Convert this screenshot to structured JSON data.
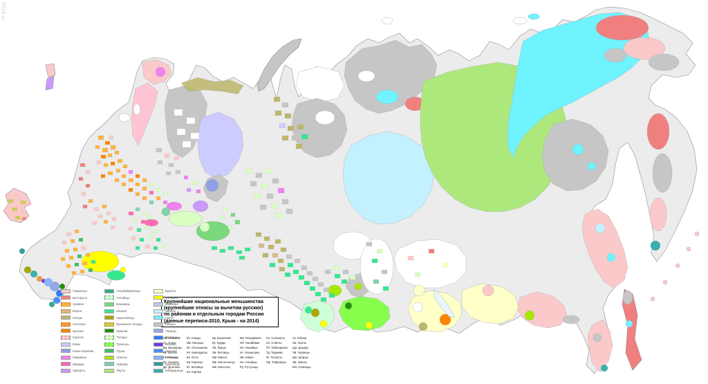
{
  "watermark": "2019 ©",
  "title_box": {
    "lines": [
      "Крупнейшие национальные меньшинства",
      "(крупнейшие этносы за вычетом русских)",
      "по районам и отдельным городам России",
      "(данные переписи-2010, Крым - на 2014)"
    ]
  },
  "legend": {
    "columns": [
      [
        {
          "label": "Украинцы",
          "color": "#FBC9C9",
          "pattern": "solid"
        },
        {
          "label": "Белорусы",
          "color": "#F08080",
          "pattern": "solid"
        },
        {
          "label": "Армяне",
          "color": "#FFB340",
          "pattern": "dotted"
        },
        {
          "label": "Евреи",
          "color": "#D9B98E",
          "pattern": "dotted"
        },
        {
          "label": "Ненцы",
          "color": "#BDB76B",
          "pattern": "solid"
        },
        {
          "label": "Осетины",
          "color": "#F29B38",
          "pattern": "dotted"
        },
        {
          "label": "Цыгане",
          "color": "#FF8400",
          "pattern": "solid"
        },
        {
          "label": "Карелы",
          "color": "#FFC4D4",
          "pattern": "dashed"
        },
        {
          "label": "Коми",
          "color": "#CCCCFF",
          "pattern": "solid"
        },
        {
          "label": "Коми-пермяки",
          "color": "#8E9FE4",
          "pattern": "solid"
        },
        {
          "label": "Марийцы",
          "color": "#EE82EE",
          "pattern": "solid"
        },
        {
          "label": "Мордва",
          "color": "#FF69B4",
          "pattern": "solid"
        },
        {
          "label": "Удмурты",
          "color": "#CC99FF",
          "pattern": "solid"
        }
      ],
      [
        {
          "label": "Азербайджанцы",
          "color": "#2FAF8F",
          "pattern": "solid"
        },
        {
          "label": "Алтайцы",
          "color": "#CFFFD8",
          "pattern": "dashed"
        },
        {
          "label": "Башкиры",
          "color": "#7BD87B",
          "pattern": "solid"
        },
        {
          "label": "Казахи",
          "color": "#35E88F",
          "pattern": "solid"
        },
        {
          "label": "Карачаевцы",
          "color": "#A8A800",
          "pattern": "solid"
        },
        {
          "label": "Крымские татары",
          "color": "#CFCF4A",
          "pattern": "dotted"
        },
        {
          "label": "Кумыки",
          "color": "#1E9400",
          "pattern": "solid"
        },
        {
          "label": "Татары",
          "color": "#D9FFC2",
          "pattern": "dashed"
        },
        {
          "label": "Тувинцы",
          "color": "#86FF4D",
          "pattern": "dashed"
        },
        {
          "label": "Турки",
          "color": "#3FBF63",
          "pattern": "solid"
        },
        {
          "label": "Хакасы",
          "color": "#A6E900",
          "pattern": "solid"
        },
        {
          "label": "Чуваши",
          "color": "#7FD4AA",
          "pattern": "solid"
        },
        {
          "label": "Якуты",
          "color": "#ADE87D",
          "pattern": "solid"
        }
      ],
      [
        {
          "label": "Буряты",
          "color": "#FFFFC8",
          "pattern": "solid"
        },
        {
          "label": "Калмыки",
          "color": "#FFFF00",
          "pattern": "solid"
        },
        {
          "label": "Корейцы",
          "color": "#BFCBD9",
          "pattern": "solid"
        },
        {
          "label": "Эвенки",
          "color": "#C4F1FF",
          "pattern": "solid"
        },
        {
          "label": "Чукчи",
          "color": "#6FF3FF",
          "pattern": "solid"
        },
        {
          "label": "Немцы",
          "color": "#C6C6C6",
          "pattern": "solid"
        },
        {
          "label": "Аварцы",
          "color": "#93A9E6",
          "pattern": "solid"
        },
        {
          "label": "Даргинцы",
          "color": "#2E7BFF",
          "pattern": "solid"
        },
        {
          "label": "Ингуши",
          "color": "#7733EE",
          "pattern": "solid"
        },
        {
          "label": "Лезгины",
          "color": "#4D8FFF",
          "pattern": "solid"
        },
        {
          "label": "Чеченцы",
          "color": "#85B6FF",
          "pattern": "solid"
        },
        {
          "label": "Адыгейцы",
          "color": "#2E9E9E",
          "pattern": "solid"
        },
        {
          "label": "Кабардинцы",
          "color": "#39AFAF",
          "pattern": "solid"
        }
      ]
    ]
  },
  "abbreviations": {
    "columns": [
      [
        {
          "code": "Аб",
          "name": "Абазины"
        },
        {
          "code": "Аг",
          "name": "Агулы"
        },
        {
          "code": "Ба",
          "name": "Балкарцы"
        },
        {
          "code": "Ве",
          "name": "Вепсы"
        },
        {
          "code": "Га",
          "name": "Гагаузы"
        },
        {
          "code": "Гр",
          "name": "Грузины"
        },
        {
          "code": "До",
          "name": "Долганы"
        }
      ],
      [
        {
          "code": "Ез",
          "name": "Езиды"
        },
        {
          "code": "Иж",
          "name": "Ижорцы"
        },
        {
          "code": "Ит",
          "name": "Ительмены"
        },
        {
          "code": "Кч",
          "name": "Камчадалы"
        },
        {
          "code": "Ке",
          "name": "Кеты"
        },
        {
          "code": "Ки",
          "name": "Киргизы"
        },
        {
          "code": "Кт",
          "name": "Китайцы"
        },
        {
          "code": "Ко",
          "name": "Коряки"
        }
      ],
      [
        {
          "code": "Кр",
          "name": "Крымчаки"
        },
        {
          "code": "Ку",
          "name": "Курды"
        },
        {
          "code": "Ла",
          "name": "Лакцы"
        },
        {
          "code": "Ли",
          "name": "Литовцы"
        },
        {
          "code": "Ма",
          "name": "Манси"
        },
        {
          "code": "Ме",
          "name": "Месхетинцы"
        },
        {
          "code": "Мн",
          "name": "Монголы"
        }
      ],
      [
        {
          "code": "Мо",
          "name": "Молдаване"
        },
        {
          "code": "Нб",
          "name": "Нагайбаки"
        },
        {
          "code": "Нн",
          "name": "Нанайцы"
        },
        {
          "code": "Нг",
          "name": "Нганасаны"
        },
        {
          "code": "Нв",
          "name": "Нивхи"
        },
        {
          "code": "Но",
          "name": "Ногайцы"
        },
        {
          "code": "Ру",
          "name": "Рутульцы"
        }
      ],
      [
        {
          "code": "Се",
          "name": "Селькупы"
        },
        {
          "code": "Со",
          "name": "Сойоты"
        },
        {
          "code": "Тб",
          "name": "Табасараны"
        },
        {
          "code": "Тд",
          "name": "Таджики"
        },
        {
          "code": "Те",
          "name": "Телеуты"
        },
        {
          "code": "Тф",
          "name": "Тофалары"
        }
      ],
      [
        {
          "code": "Уз",
          "name": "Узбеки"
        },
        {
          "code": "Ха",
          "name": "Ханты"
        },
        {
          "code": "Ца",
          "name": "Цахуры"
        },
        {
          "code": "Чв",
          "name": "Чуванцы"
        },
        {
          "code": "Шо",
          "name": "Шорцы"
        },
        {
          "code": "Эв",
          "name": "Эвены"
        },
        {
          "code": "Юк",
          "name": "Юкагиры"
        }
      ]
    ]
  },
  "map": {
    "palette": {
      "ukrainians": "#FBC9C9",
      "belarusians": "#F08080",
      "armenians": "#FFB340",
      "jews": "#D9B98E",
      "nenets": "#BDB76B",
      "ossetians": "#F29B38",
      "roma": "#FF8400",
      "karelians": "#FFC4D4",
      "komi": "#CCCCFF",
      "komi_permyaks": "#8E9FE4",
      "mari": "#EE82EE",
      "mordva": "#FF69B4",
      "udmurts": "#CC99FF",
      "azerbaijanis": "#2FAF8F",
      "altaians": "#CFFFD8",
      "bashkirs": "#7BD87B",
      "kazakhs": "#35E88F",
      "karachays": "#A8A800",
      "crimean_tatars": "#CFCF4A",
      "kumyks": "#1E9400",
      "tatars": "#D9FFC2",
      "tuvans": "#86FF4D",
      "turks": "#3FBF63",
      "khakas": "#A6E900",
      "chuvash": "#7FD4AA",
      "yakuts": "#ADE87D",
      "buryats": "#FFFFC8",
      "kalmyks": "#FFFF00",
      "koreans": "#BFCBD9",
      "evenks": "#C4F1FF",
      "chukchi": "#6FF3FF",
      "germans": "#C6C6C6",
      "avars": "#93A9E6",
      "dargins": "#2E7BFF",
      "ingush": "#7733EE",
      "lezgins": "#4D8FFF",
      "chechens": "#85B6FF",
      "adyghe": "#2E9E9E",
      "kabardians": "#39AFAF",
      "white": "#FFFFFF",
      "base": "#ECECEC",
      "lake": "#E8F6FF"
    }
  }
}
